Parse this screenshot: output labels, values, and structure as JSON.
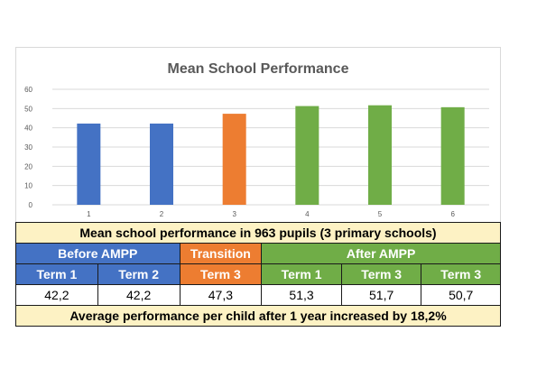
{
  "chart_data": {
    "type": "bar",
    "title": "Mean School Performance",
    "categories": [
      "1",
      "2",
      "3",
      "4",
      "5",
      "6"
    ],
    "values": [
      42.2,
      42.2,
      47.3,
      51.3,
      51.7,
      50.7
    ],
    "ylim": [
      0,
      60
    ],
    "yticks": [
      0,
      10,
      20,
      30,
      40,
      50,
      60
    ],
    "grid": true,
    "bar_colors": [
      "#4472c4",
      "#4472c4",
      "#ed7d31",
      "#70ad47",
      "#70ad47",
      "#70ad47"
    ]
  },
  "table": {
    "title": "Mean school performance in 963 pupils (3 primary schools)",
    "groups": [
      {
        "label": "Before AMPP",
        "span": 2,
        "color": "#4472c4"
      },
      {
        "label": "Transition",
        "span": 1,
        "color": "#ed7d31"
      },
      {
        "label": "After AMPP",
        "span": 3,
        "color": "#70ad47"
      }
    ],
    "terms": [
      "Term 1",
      "Term 2",
      "Term 3",
      "Term 1",
      "Term 3",
      "Term 3"
    ],
    "values": [
      "42,2",
      "42,2",
      "47,3",
      "51,3",
      "51,7",
      "50,7"
    ],
    "footer": "Average performance per child after 1 year increased by 18,2%"
  }
}
